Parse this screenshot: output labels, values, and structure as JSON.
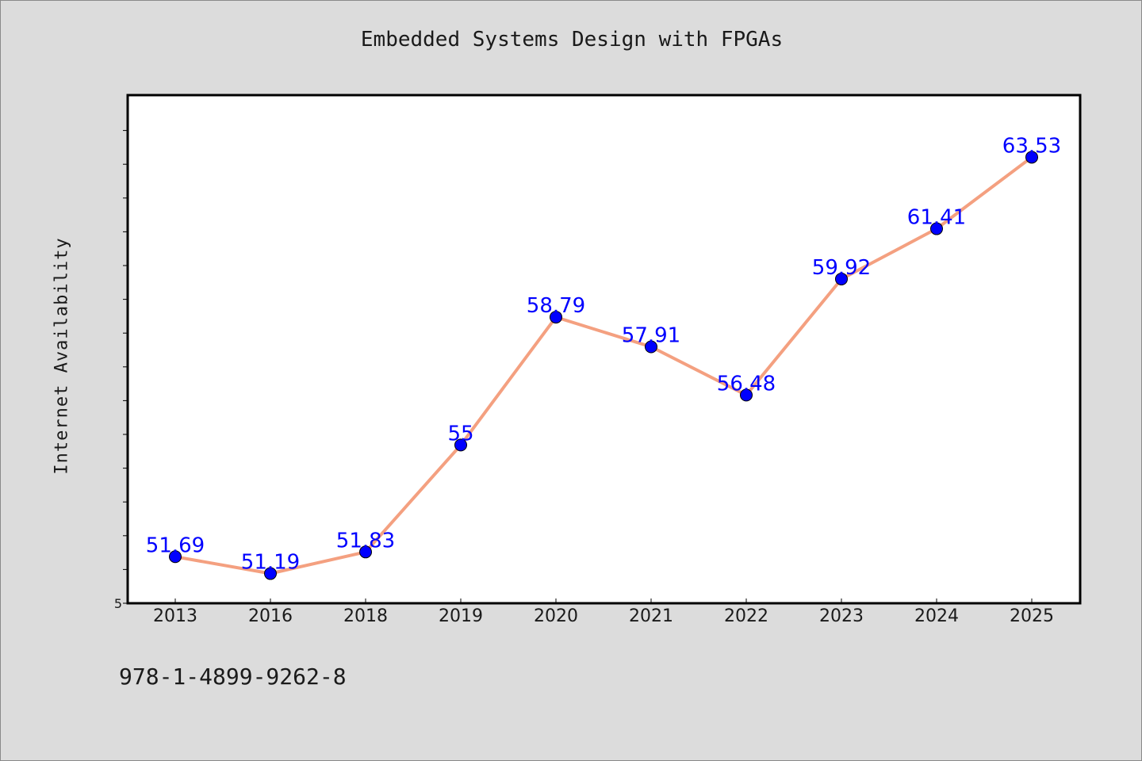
{
  "header": {
    "title": "Embedded Systems Design with FPGAs"
  },
  "footer": {
    "isbn": "978-1-4899-9262-8"
  },
  "chart_data": {
    "type": "line",
    "title": "Embedded Systems Design with FPGAs",
    "xlabel": "",
    "ylabel": "Internet Availability",
    "categories": [
      "2013",
      "2016",
      "2018",
      "2019",
      "2020",
      "2021",
      "2022",
      "2023",
      "2024",
      "2025"
    ],
    "values": [
      51.69,
      51.19,
      51.83,
      55,
      58.79,
      57.91,
      56.48,
      59.92,
      61.41,
      63.53
    ],
    "data_labels": [
      "51.69",
      "51.19",
      "51.83",
      "55",
      "58.79",
      "57.91",
      "56.48",
      "59.92",
      "61.41",
      "63.53"
    ],
    "ylim": [
      50.31,
      65.37
    ],
    "y_tick_labels": [
      "5"
    ],
    "grid": false,
    "legend": "none",
    "colors": {
      "line": "#f4a080",
      "marker": "#0000ff",
      "data_label": "#0000ff",
      "plot_background": "#ffffff",
      "page_background": "#dcdcdc"
    }
  }
}
